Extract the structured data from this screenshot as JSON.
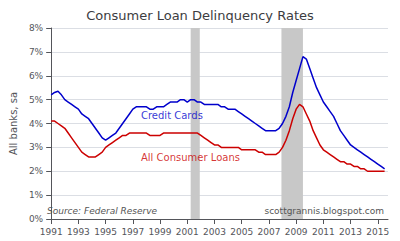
{
  "chart_data": {
    "type": "line",
    "title": "Consumer Loan Delinquency Rates",
    "ylabel": "All banks, sa",
    "x": [
      1991.0,
      1991.25,
      1991.5,
      1991.75,
      1992.0,
      1992.25,
      1992.5,
      1992.75,
      1993.0,
      1993.25,
      1993.5,
      1993.75,
      1994.0,
      1994.25,
      1994.5,
      1994.75,
      1995.0,
      1995.25,
      1995.5,
      1995.75,
      1996.0,
      1996.25,
      1996.5,
      1996.75,
      1997.0,
      1997.25,
      1997.5,
      1997.75,
      1998.0,
      1998.25,
      1998.5,
      1998.75,
      1999.0,
      1999.25,
      1999.5,
      1999.75,
      2000.0,
      2000.25,
      2000.5,
      2000.75,
      2001.0,
      2001.25,
      2001.5,
      2001.75,
      2002.0,
      2002.25,
      2002.5,
      2002.75,
      2003.0,
      2003.25,
      2003.5,
      2003.75,
      2004.0,
      2004.25,
      2004.5,
      2004.75,
      2005.0,
      2005.25,
      2005.5,
      2005.75,
      2006.0,
      2006.25,
      2006.5,
      2006.75,
      2007.0,
      2007.25,
      2007.5,
      2007.75,
      2008.0,
      2008.25,
      2008.5,
      2008.75,
      2009.0,
      2009.25,
      2009.5,
      2009.75,
      2010.0,
      2010.25,
      2010.5,
      2010.75,
      2011.0,
      2011.25,
      2011.5,
      2011.75,
      2012.0,
      2012.25,
      2012.5,
      2012.75,
      2013.0,
      2013.25,
      2013.5,
      2013.75,
      2014.0,
      2014.25,
      2014.5,
      2014.75,
      2015.0,
      2015.25,
      2015.5
    ],
    "series": [
      {
        "name": "Credit Cards",
        "color": "#0000cc",
        "values": [
          0.052,
          0.053,
          0.0535,
          0.052,
          0.05,
          0.049,
          0.048,
          0.047,
          0.046,
          0.044,
          0.043,
          0.042,
          0.04,
          0.038,
          0.036,
          0.034,
          0.033,
          0.034,
          0.035,
          0.036,
          0.038,
          0.04,
          0.042,
          0.044,
          0.046,
          0.047,
          0.047,
          0.047,
          0.047,
          0.046,
          0.046,
          0.047,
          0.047,
          0.047,
          0.048,
          0.049,
          0.049,
          0.049,
          0.05,
          0.05,
          0.049,
          0.05,
          0.05,
          0.049,
          0.049,
          0.048,
          0.048,
          0.048,
          0.048,
          0.048,
          0.047,
          0.047,
          0.046,
          0.046,
          0.046,
          0.045,
          0.044,
          0.043,
          0.042,
          0.041,
          0.04,
          0.039,
          0.038,
          0.037,
          0.037,
          0.037,
          0.037,
          0.038,
          0.04,
          0.043,
          0.047,
          0.053,
          0.058,
          0.063,
          0.068,
          0.067,
          0.063,
          0.059,
          0.055,
          0.052,
          0.049,
          0.047,
          0.045,
          0.043,
          0.04,
          0.037,
          0.035,
          0.033,
          0.031,
          0.03,
          0.029,
          0.028,
          0.027,
          0.026,
          0.025,
          0.024,
          0.023,
          0.022,
          0.021
        ]
      },
      {
        "name": "All Consumer Loans",
        "color": "#cc0000",
        "values": [
          0.041,
          0.041,
          0.04,
          0.039,
          0.038,
          0.036,
          0.034,
          0.032,
          0.03,
          0.028,
          0.027,
          0.026,
          0.026,
          0.026,
          0.027,
          0.028,
          0.03,
          0.031,
          0.032,
          0.033,
          0.034,
          0.035,
          0.035,
          0.036,
          0.036,
          0.036,
          0.036,
          0.036,
          0.036,
          0.035,
          0.035,
          0.035,
          0.035,
          0.036,
          0.036,
          0.036,
          0.036,
          0.036,
          0.036,
          0.036,
          0.036,
          0.036,
          0.036,
          0.036,
          0.035,
          0.034,
          0.033,
          0.032,
          0.031,
          0.031,
          0.03,
          0.03,
          0.03,
          0.03,
          0.03,
          0.03,
          0.029,
          0.029,
          0.029,
          0.029,
          0.029,
          0.028,
          0.028,
          0.027,
          0.027,
          0.027,
          0.027,
          0.028,
          0.03,
          0.033,
          0.037,
          0.042,
          0.046,
          0.048,
          0.047,
          0.044,
          0.041,
          0.037,
          0.034,
          0.031,
          0.029,
          0.028,
          0.027,
          0.026,
          0.025,
          0.024,
          0.024,
          0.023,
          0.023,
          0.022,
          0.022,
          0.021,
          0.021,
          0.02,
          0.02,
          0.02,
          0.02,
          0.02,
          0.02
        ]
      }
    ],
    "xlim": [
      1991,
      2015.75
    ],
    "xticks": [
      1991,
      1993,
      1995,
      1997,
      1999,
      2001,
      2003,
      2005,
      2007,
      2009,
      2011,
      2013,
      2015
    ],
    "ylim": [
      0.0,
      0.08
    ],
    "yticks": [
      {
        "value": 0.0,
        "label": "0%"
      },
      {
        "value": 0.01,
        "label": "1%"
      },
      {
        "value": 0.02,
        "label": "2%"
      },
      {
        "value": 0.03,
        "label": "3%"
      },
      {
        "value": 0.04,
        "label": "4%"
      },
      {
        "value": 0.05,
        "label": "5%"
      },
      {
        "value": 0.06,
        "label": "6%"
      },
      {
        "value": 0.07,
        "label": "7%"
      },
      {
        "value": 0.08,
        "label": "8%"
      }
    ],
    "grid": true,
    "recession_bands": [
      [
        2001.25,
        2001.92
      ],
      [
        2007.92,
        2009.5
      ]
    ],
    "annotations": [
      {
        "text": "Credit Cards",
        "x": 1997.6,
        "y": 0.0455,
        "color": "#0000cc"
      },
      {
        "text": "All Consumer Loans",
        "x": 1997.6,
        "y": 0.028,
        "color": "#cc0000"
      }
    ],
    "source": "Source: Federal Reserve",
    "watermark": "scottgrannis.blogspot.com"
  }
}
